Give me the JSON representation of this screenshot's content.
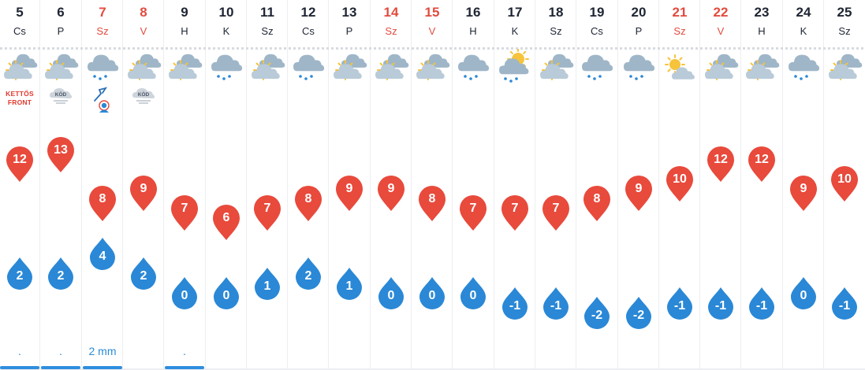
{
  "colors": {
    "weekday_text": "#1e2533",
    "weekend_text": "#e24b3f",
    "max_pin": "#e84a3c",
    "min_drop": "#2a88d6",
    "precip_bar": "#2f8ede",
    "front_text": "#e03a2f"
  },
  "alert_labels": {
    "front_line1": "KETTŐS",
    "front_line2": "FRONT",
    "fog": "KÖD"
  },
  "days": [
    {
      "day": "5",
      "name": "Cs",
      "weekend": false,
      "icon": "sun-cloud-icon",
      "alert": "front",
      "max": "12",
      "min": "2",
      "precip": ".",
      "bar": true
    },
    {
      "day": "6",
      "name": "P",
      "weekend": false,
      "icon": "sun-cloud-icon",
      "alert": "fog",
      "max": "13",
      "min": "2",
      "precip": ".",
      "bar": true
    },
    {
      "day": "7",
      "name": "Sz",
      "weekend": true,
      "icon": "rain-cloud-icon",
      "alert": "radar",
      "max": "8",
      "min": "4",
      "precip": "2 mm",
      "bar": true
    },
    {
      "day": "8",
      "name": "V",
      "weekend": true,
      "icon": "sun-cloud-icon",
      "alert": "fog",
      "max": "9",
      "min": "2",
      "precip": "",
      "bar": false
    },
    {
      "day": "9",
      "name": "H",
      "weekend": false,
      "icon": "sun-cloud-icon",
      "alert": "",
      "max": "7",
      "min": "0",
      "precip": ".",
      "bar": true
    },
    {
      "day": "10",
      "name": "K",
      "weekend": false,
      "icon": "rain-cloud-icon",
      "alert": "",
      "max": "6",
      "min": "0",
      "precip": "",
      "bar": false
    },
    {
      "day": "11",
      "name": "Sz",
      "weekend": false,
      "icon": "sun-cloud-icon",
      "alert": "",
      "max": "7",
      "min": "1",
      "precip": "",
      "bar": false
    },
    {
      "day": "12",
      "name": "Cs",
      "weekend": false,
      "icon": "rain-cloud-icon",
      "alert": "",
      "max": "8",
      "min": "2",
      "precip": "",
      "bar": false
    },
    {
      "day": "13",
      "name": "P",
      "weekend": false,
      "icon": "sun-cloud-icon",
      "alert": "",
      "max": "9",
      "min": "1",
      "precip": "",
      "bar": false
    },
    {
      "day": "14",
      "name": "Sz",
      "weekend": true,
      "icon": "sun-cloud-icon",
      "alert": "",
      "max": "9",
      "min": "0",
      "precip": "",
      "bar": false
    },
    {
      "day": "15",
      "name": "V",
      "weekend": true,
      "icon": "sun-cloud-icon",
      "alert": "",
      "max": "8",
      "min": "0",
      "precip": "",
      "bar": false
    },
    {
      "day": "16",
      "name": "H",
      "weekend": false,
      "icon": "rain-cloud-icon",
      "alert": "",
      "max": "7",
      "min": "0",
      "precip": "",
      "bar": false
    },
    {
      "day": "17",
      "name": "K",
      "weekend": false,
      "icon": "sun-cloud-rain-icon",
      "alert": "",
      "max": "7",
      "min": "-1",
      "precip": "",
      "bar": false
    },
    {
      "day": "18",
      "name": "Sz",
      "weekend": false,
      "icon": "sun-cloud-icon",
      "alert": "",
      "max": "7",
      "min": "-1",
      "precip": "",
      "bar": false
    },
    {
      "day": "19",
      "name": "Cs",
      "weekend": false,
      "icon": "rain-cloud-icon",
      "alert": "",
      "max": "8",
      "min": "-2",
      "precip": "",
      "bar": false
    },
    {
      "day": "20",
      "name": "P",
      "weekend": false,
      "icon": "rain-cloud-icon",
      "alert": "",
      "max": "9",
      "min": "-2",
      "precip": "",
      "bar": false
    },
    {
      "day": "21",
      "name": "Sz",
      "weekend": true,
      "icon": "sun-small-cloud-icon",
      "alert": "",
      "max": "10",
      "min": "-1",
      "precip": "",
      "bar": false
    },
    {
      "day": "22",
      "name": "V",
      "weekend": true,
      "icon": "sun-cloud-icon",
      "alert": "",
      "max": "12",
      "min": "-1",
      "precip": "",
      "bar": false
    },
    {
      "day": "23",
      "name": "H",
      "weekend": false,
      "icon": "sun-cloud-icon",
      "alert": "",
      "max": "12",
      "min": "-1",
      "precip": "",
      "bar": false
    },
    {
      "day": "24",
      "name": "K",
      "weekend": false,
      "icon": "rain-cloud-icon",
      "alert": "",
      "max": "9",
      "min": "0",
      "precip": "",
      "bar": false
    },
    {
      "day": "25",
      "name": "Sz",
      "weekend": false,
      "icon": "sun-cloud-icon",
      "alert": "",
      "max": "10",
      "min": "-1",
      "precip": "",
      "bar": false
    }
  ]
}
